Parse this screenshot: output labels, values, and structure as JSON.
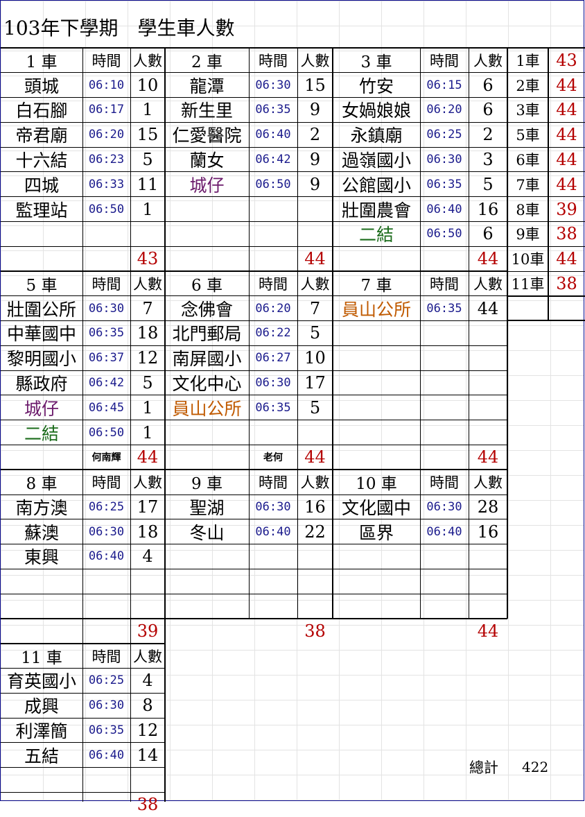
{
  "title": "103年下學期　學生車人數",
  "headers": {
    "time": "時間",
    "people": "人數"
  },
  "buses": [
    {
      "id": "1",
      "label": "1 車",
      "stops": [
        {
          "name": "頭城",
          "time": "06:10",
          "count": "10"
        },
        {
          "name": "白石腳",
          "time": "06:17",
          "count": "1"
        },
        {
          "name": "帝君廟",
          "time": "06:20",
          "count": "15"
        },
        {
          "name": "十六結",
          "time": "06:23",
          "count": "5"
        },
        {
          "name": "四城",
          "time": "06:33",
          "count": "11"
        },
        {
          "name": "監理站",
          "time": "06:50",
          "count": "1"
        }
      ],
      "signature": "",
      "total": "43"
    },
    {
      "id": "2",
      "label": "2 車",
      "stops": [
        {
          "name": "龍潭",
          "time": "06:30",
          "count": "15"
        },
        {
          "name": "新生里",
          "time": "06:35",
          "count": "9"
        },
        {
          "name": "仁愛醫院",
          "time": "06:40",
          "count": "2"
        },
        {
          "name": "蘭女",
          "time": "06:42",
          "count": "9"
        },
        {
          "name": "城仔",
          "time": "06:50",
          "count": "9",
          "color": "#6b1a6b"
        }
      ],
      "signature": "",
      "total": "44"
    },
    {
      "id": "3",
      "label": "3 車",
      "stops": [
        {
          "name": "竹安",
          "time": "06:15",
          "count": "6"
        },
        {
          "name": "女媧娘娘",
          "time": "06:20",
          "count": "6"
        },
        {
          "name": "永鎮廟",
          "time": "06:25",
          "count": "2"
        },
        {
          "name": "過嶺國小",
          "time": "06:30",
          "count": "3"
        },
        {
          "name": "公館國小",
          "time": "06:35",
          "count": "5"
        },
        {
          "name": "壯圍農會",
          "time": "06:40",
          "count": "16"
        },
        {
          "name": "二結",
          "time": "06:50",
          "count": "6",
          "color": "#1a6b1a"
        }
      ],
      "signature": "",
      "total": "44"
    },
    {
      "id": "5",
      "label": "5 車",
      "stops": [
        {
          "name": "壯圍公所",
          "time": "06:30",
          "count": "7"
        },
        {
          "name": "中華國中",
          "time": "06:35",
          "count": "18"
        },
        {
          "name": "黎明國小",
          "time": "06:37",
          "count": "12"
        },
        {
          "name": "縣政府",
          "time": "06:42",
          "count": "5"
        },
        {
          "name": "城仔",
          "time": "06:45",
          "count": "1",
          "color": "#6b1a6b"
        },
        {
          "name": "二結",
          "time": "06:50",
          "count": "1",
          "color": "#1a6b1a"
        }
      ],
      "signature": "何南輝",
      "total": "44"
    },
    {
      "id": "6",
      "label": "6 車",
      "stops": [
        {
          "name": "念佛會",
          "time": "06:20",
          "count": "7"
        },
        {
          "name": "北門郵局",
          "time": "06:22",
          "count": "5"
        },
        {
          "name": "南屏國小",
          "time": "06:27",
          "count": "10"
        },
        {
          "name": "文化中心",
          "time": "06:30",
          "count": "17"
        },
        {
          "name": "員山公所",
          "time": "06:35",
          "count": "5",
          "color": "#c05a00"
        }
      ],
      "signature": "老何",
      "total": "44"
    },
    {
      "id": "7",
      "label": "7 車",
      "stops": [
        {
          "name": "員山公所",
          "time": "06:35",
          "count": "44",
          "color": "#c05a00"
        }
      ],
      "signature": "",
      "total": "44"
    },
    {
      "id": "8",
      "label": "8 車",
      "stops": [
        {
          "name": "南方澳",
          "time": "06:25",
          "count": "17"
        },
        {
          "name": "蘇澳",
          "time": "06:30",
          "count": "18"
        },
        {
          "name": "東興",
          "time": "06:40",
          "count": "4"
        }
      ],
      "signature": "",
      "total": "39"
    },
    {
      "id": "9",
      "label": "9 車",
      "stops": [
        {
          "name": "聖湖",
          "time": "06:30",
          "count": "16"
        },
        {
          "name": "冬山",
          "time": "06:40",
          "count": "22"
        }
      ],
      "signature": "",
      "total": "38"
    },
    {
      "id": "10",
      "label": "10 車",
      "stops": [
        {
          "name": "文化國中",
          "time": "06:30",
          "count": "28"
        },
        {
          "name": "區界",
          "time": "06:40",
          "count": "16"
        }
      ],
      "signature": "",
      "total": "44"
    },
    {
      "id": "11",
      "label": "11 車",
      "stops": [
        {
          "name": "育英國小",
          "time": "06:25",
          "count": "4"
        },
        {
          "name": "成興",
          "time": "06:30",
          "count": "8"
        },
        {
          "name": "利澤簡",
          "time": "06:35",
          "count": "12"
        },
        {
          "name": "五結",
          "time": "06:40",
          "count": "14"
        }
      ],
      "signature": "",
      "total": "38"
    }
  ],
  "summary": [
    {
      "bus": "1車",
      "count": "43"
    },
    {
      "bus": "2車",
      "count": "44"
    },
    {
      "bus": "3車",
      "count": "44"
    },
    {
      "bus": "5車",
      "count": "44"
    },
    {
      "bus": "6車",
      "count": "44"
    },
    {
      "bus": "7車",
      "count": "44"
    },
    {
      "bus": "8車",
      "count": "39"
    },
    {
      "bus": "9車",
      "count": "38"
    },
    {
      "bus": "10車",
      "count": "44"
    },
    {
      "bus": "11車",
      "count": "38"
    }
  ],
  "grand_total": {
    "label": "總計",
    "value": "422"
  },
  "colors": {
    "time": "#1a1a8c",
    "total": "#b40000",
    "chengzai": "#6b1a6b",
    "erjie": "#1a6b1a",
    "yuanshan": "#c05a00",
    "frame": "#0b0b8f"
  }
}
